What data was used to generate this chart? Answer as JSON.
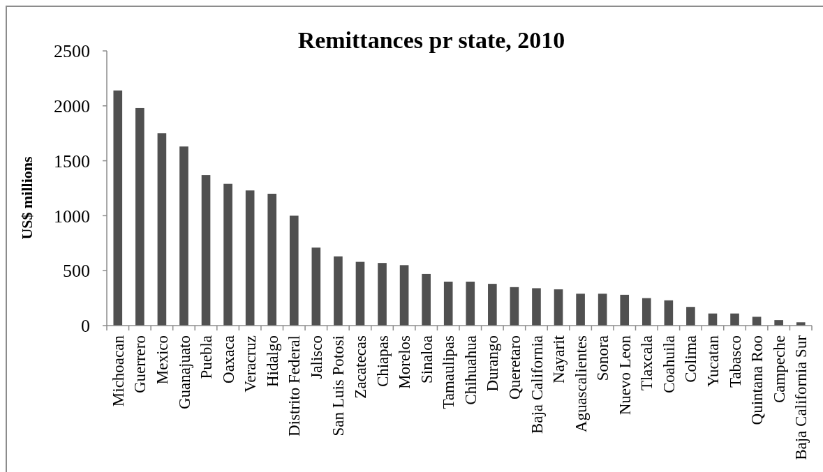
{
  "chart_data": {
    "type": "bar",
    "title": "Remittances pr state, 2010",
    "ylabel": "US$ millions",
    "categories": [
      "Michoacan",
      "Guerrero",
      "Mexico",
      "Guanajuato",
      "Puebla",
      "Oaxaca",
      "Veracruz",
      "Hidalgo",
      "Distrito Federal",
      "Jalisco",
      "San Luis Potosi",
      "Zacatecas",
      "Chiapas",
      "Morelos",
      "Sinaloa",
      "Tamaulipas",
      "Chihuahua",
      "Durango",
      "Queretaro",
      "Baja California",
      "Nayarit",
      "Aguascalientes",
      "Sonora",
      "Nuevo Leon",
      "Tlaxcala",
      "Coahuila",
      "Colima",
      "Yucatan",
      "Tabasco",
      "Quintana Roo",
      "Campeche",
      "Baja California Sur"
    ],
    "values": [
      2140,
      1980,
      1750,
      1630,
      1370,
      1290,
      1230,
      1200,
      1000,
      710,
      630,
      580,
      570,
      550,
      470,
      400,
      400,
      380,
      350,
      340,
      330,
      290,
      290,
      280,
      250,
      230,
      170,
      110,
      110,
      80,
      50,
      30
    ],
    "color": "#505050",
    "ylim": [
      0,
      2500
    ],
    "yticks": [
      0,
      500,
      1000,
      1500,
      2000,
      2500
    ]
  }
}
